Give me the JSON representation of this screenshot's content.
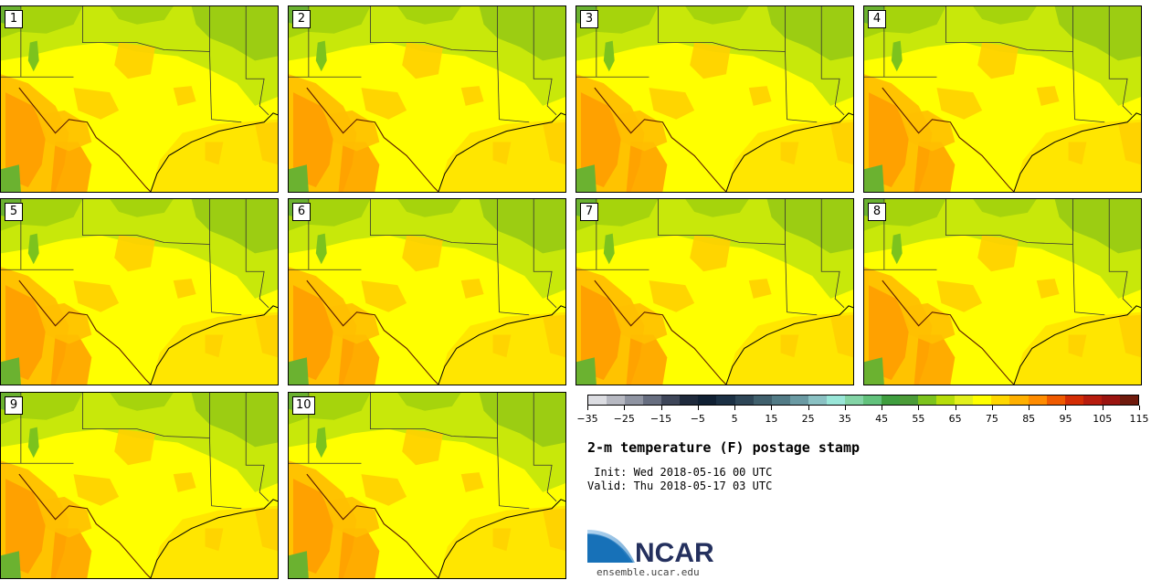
{
  "panels": [
    {
      "label": "1"
    },
    {
      "label": "2"
    },
    {
      "label": "3"
    },
    {
      "label": "4"
    },
    {
      "label": "5"
    },
    {
      "label": "6"
    },
    {
      "label": "7"
    },
    {
      "label": "8"
    },
    {
      "label": "9"
    },
    {
      "label": "10"
    }
  ],
  "colorbar": {
    "colors": [
      "#dcdde2",
      "#b7b9c2",
      "#8f94a2",
      "#676e80",
      "#3e4659",
      "#1f2a3c",
      "#102033",
      "#1b3044",
      "#2e4657",
      "#40606d",
      "#527b86",
      "#6a9aa3",
      "#8ac1c3",
      "#99e6d8",
      "#83d4a6",
      "#62c27c",
      "#3f9e3f",
      "#4b9c38",
      "#7cc31d",
      "#b6dd0a",
      "#e2f01c",
      "#ffff00",
      "#ffd700",
      "#ffb000",
      "#ff8c00",
      "#ef5a00",
      "#d42d05",
      "#b71c0e",
      "#9b1410",
      "#6f1a0d"
    ],
    "min": -35,
    "max": 115,
    "ticks": [
      "−35",
      "−25",
      "−15",
      "−5",
      "5",
      "15",
      "25",
      "35",
      "45",
      "55",
      "65",
      "75",
      "85",
      "95",
      "105",
      "115"
    ]
  },
  "title": "2-m temperature (F) postage stamp",
  "init": " Init: Wed 2018-05-16 00 UTC",
  "valid": "Valid: Thu 2018-05-17 03 UTC",
  "logo": {
    "text": "NCAR",
    "colors": {
      "blue": "#1771b8",
      "dark": "#24305e"
    }
  },
  "website": "ensemble.ucar.edu"
}
